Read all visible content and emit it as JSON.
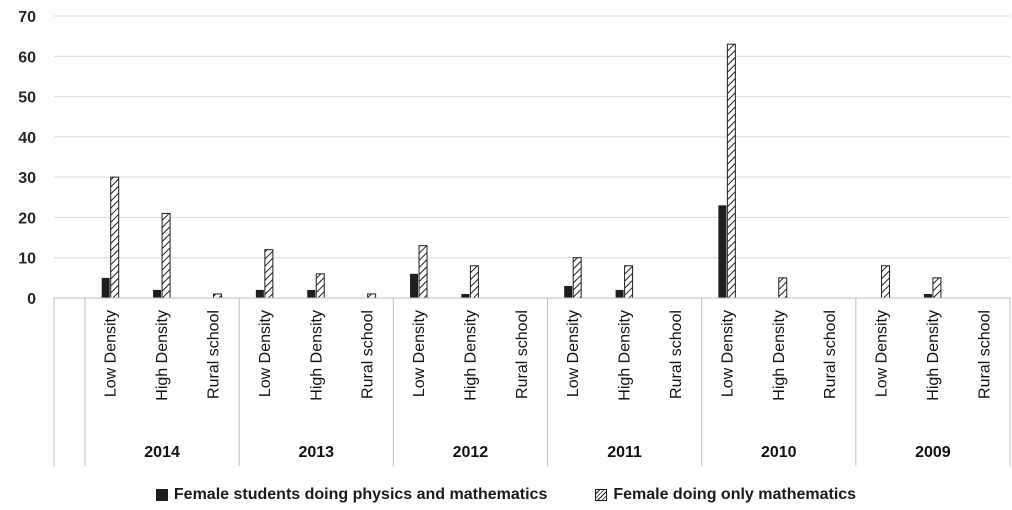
{
  "chart_data": {
    "type": "bar",
    "title": "",
    "xlabel": "",
    "ylabel": "",
    "ylim": [
      0,
      70
    ],
    "yticks": [
      0,
      10,
      20,
      30,
      40,
      50,
      60,
      70
    ],
    "grid": true,
    "legend_position": "bottom",
    "groups": [
      "2014",
      "2013",
      "2012",
      "2011",
      "2010",
      "2009"
    ],
    "subcategories": [
      "Low Density",
      "High Density",
      "Rural school"
    ],
    "series": [
      {
        "name": "Female students doing physics and mathematics",
        "pattern": "solid",
        "color": "#1e1e1e",
        "values": [
          5,
          2,
          0,
          2,
          2,
          0,
          6,
          1,
          0,
          3,
          2,
          0,
          23,
          0,
          0,
          0,
          1,
          0
        ]
      },
      {
        "name": "Female doing only mathematics",
        "pattern": "hatched",
        "color": "#1e1e1e",
        "values": [
          30,
          21,
          1,
          12,
          6,
          1,
          13,
          8,
          0,
          10,
          8,
          0,
          63,
          5,
          0,
          8,
          5,
          0
        ]
      }
    ]
  }
}
